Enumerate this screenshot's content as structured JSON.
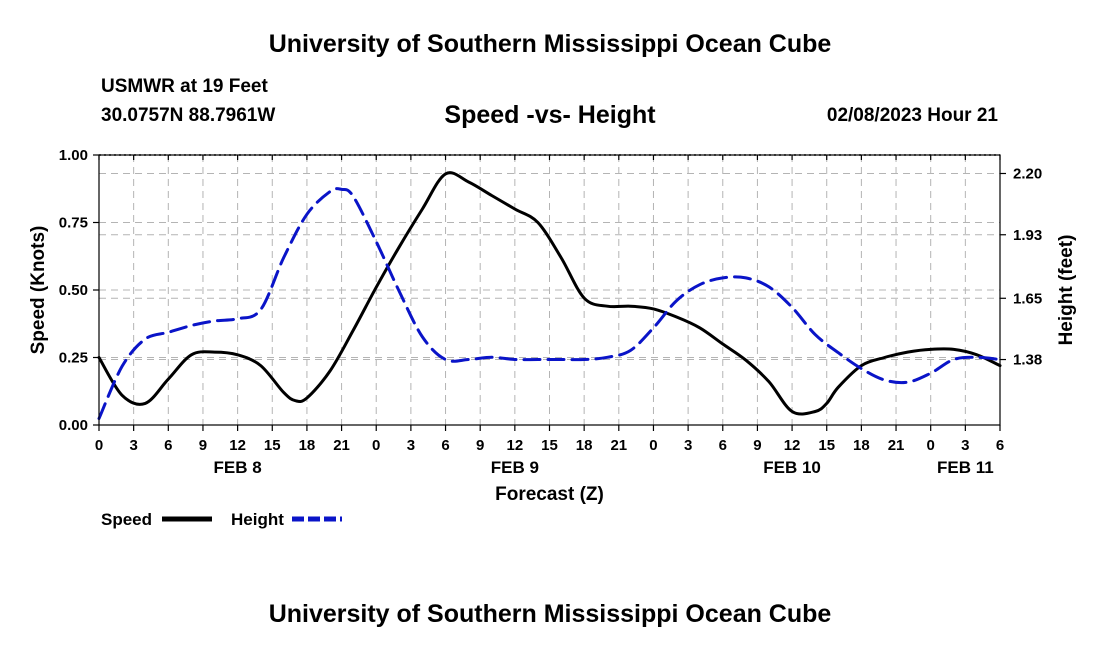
{
  "header": {
    "title": "University of Southern Mississippi Ocean Cube",
    "station": "USMWR at 19 Feet",
    "coords": "30.0757N  88.7961W",
    "subtitle": "Speed -vs- Height",
    "timestamp": "02/08/2023 Hour 21"
  },
  "footer": {
    "title": "University of Southern Mississippi Ocean Cube"
  },
  "colors": {
    "speed": "#000000",
    "height": "#0a14c8",
    "grid": "#b4b4b4"
  },
  "chart_data": {
    "type": "line",
    "title": "Speed -vs- Height",
    "xlabel": "Forecast (Z)",
    "ylabel": "Speed (Knots)",
    "y2label": "Height (feet)",
    "x_unit": "hours from 00Z Feb 8",
    "xlim": [
      0,
      78
    ],
    "ylim": [
      0,
      1
    ],
    "y2lim": [
      1.0915,
      2.2815
    ],
    "x_ticks": [
      0,
      3,
      6,
      9,
      12,
      15,
      18,
      21,
      24,
      27,
      30,
      33,
      36,
      39,
      42,
      45,
      48,
      51,
      54,
      57,
      60,
      63,
      66,
      69,
      72,
      75,
      78
    ],
    "x_tick_labels": [
      "0",
      "3",
      "6",
      "9",
      "12",
      "15",
      "18",
      "21",
      "0",
      "3",
      "6",
      "9",
      "12",
      "15",
      "18",
      "21",
      "0",
      "3",
      "6",
      "9",
      "12",
      "15",
      "18",
      "21",
      "0",
      "3",
      "6"
    ],
    "y_ticks": [
      0,
      0.25,
      0.5,
      0.75,
      1.0
    ],
    "y_tick_labels": [
      "0.00",
      "0.25",
      "0.50",
      "0.75",
      "1.00"
    ],
    "y2_ticks": [
      1.38,
      1.65,
      1.93,
      2.2
    ],
    "y2_tick_labels": [
      "1.38",
      "1.65",
      "1.93",
      "2.20"
    ],
    "date_labels": [
      {
        "x": 12,
        "label": "FEB 8"
      },
      {
        "x": 36,
        "label": "FEB 9"
      },
      {
        "x": 60,
        "label": "FEB 10"
      },
      {
        "x": 75,
        "label": "FEB 11"
      }
    ],
    "legend": [
      {
        "name": "Speed",
        "style": "solid"
      },
      {
        "name": "Height",
        "style": "dashed"
      }
    ],
    "series": [
      {
        "name": "Speed",
        "axis": "left",
        "style": "solid",
        "x": [
          0,
          2,
          4,
          6,
          8,
          10,
          12,
          14,
          16,
          17,
          18,
          20,
          22,
          24,
          26,
          28,
          30,
          32,
          34,
          36,
          38,
          40,
          42,
          44,
          46,
          48,
          50,
          52,
          54,
          56,
          58,
          60,
          62,
          63,
          64,
          66,
          68,
          70,
          72,
          74,
          76,
          78
        ],
        "y": [
          0.25,
          0.11,
          0.08,
          0.17,
          0.26,
          0.27,
          0.26,
          0.22,
          0.12,
          0.09,
          0.1,
          0.2,
          0.35,
          0.51,
          0.66,
          0.8,
          0.93,
          0.9,
          0.85,
          0.8,
          0.75,
          0.62,
          0.47,
          0.44,
          0.44,
          0.43,
          0.4,
          0.36,
          0.3,
          0.24,
          0.16,
          0.05,
          0.05,
          0.08,
          0.14,
          0.22,
          0.25,
          0.27,
          0.28,
          0.28,
          0.26,
          0.22
        ]
      },
      {
        "name": "Height",
        "axis": "right",
        "style": "dashed",
        "x": [
          0,
          2,
          4,
          6,
          8,
          10,
          12,
          14,
          16,
          18,
          20,
          21,
          22,
          24,
          26,
          28,
          30,
          32,
          34,
          36,
          38,
          40,
          42,
          44,
          46,
          48,
          50,
          52,
          54,
          56,
          58,
          60,
          62,
          64,
          66,
          68,
          70,
          72,
          74,
          76,
          78
        ],
        "y": [
          1.12,
          1.35,
          1.47,
          1.5,
          1.53,
          1.55,
          1.56,
          1.6,
          1.83,
          2.02,
          2.12,
          2.13,
          2.1,
          1.9,
          1.68,
          1.48,
          1.38,
          1.38,
          1.39,
          1.38,
          1.38,
          1.38,
          1.38,
          1.39,
          1.42,
          1.52,
          1.64,
          1.71,
          1.74,
          1.74,
          1.7,
          1.61,
          1.49,
          1.41,
          1.34,
          1.29,
          1.28,
          1.32,
          1.38,
          1.39,
          1.38
        ]
      }
    ]
  }
}
